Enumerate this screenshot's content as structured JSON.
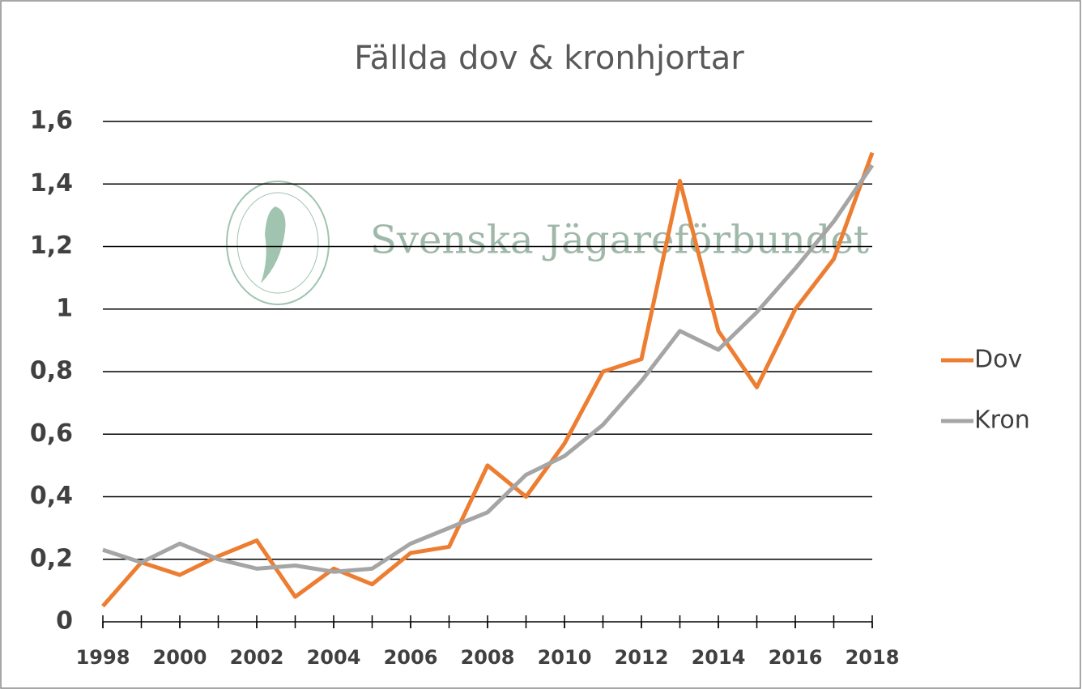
{
  "chart_data": {
    "type": "line",
    "title": "Fällda dov & kronhjortar",
    "watermark": "Svenska Jägareförbundet",
    "x": [
      1998,
      1999,
      2000,
      2001,
      2002,
      2003,
      2004,
      2005,
      2006,
      2007,
      2008,
      2009,
      2010,
      2011,
      2012,
      2013,
      2014,
      2015,
      2016,
      2017,
      2018
    ],
    "xlim": [
      1998,
      2018
    ],
    "xticks": [
      1998,
      2000,
      2002,
      2004,
      2006,
      2008,
      2010,
      2012,
      2014,
      2016,
      2018
    ],
    "ylim": [
      0,
      1.6
    ],
    "yticks": [
      0,
      {
        "value": 0.2,
        "label": "0,2"
      },
      {
        "value": 0.4,
        "label": "0,4"
      },
      {
        "value": 0.6,
        "label": "0,6"
      },
      {
        "value": 0.8,
        "label": "0,8"
      },
      1,
      {
        "value": 1.2,
        "label": "1,2"
      },
      {
        "value": 1.4,
        "label": "1,4"
      },
      {
        "value": 1.6,
        "label": "1,6"
      }
    ],
    "grid": true,
    "legend": "right",
    "series": [
      {
        "name": "Dov",
        "color": "#ed7d31",
        "values": [
          0.05,
          0.19,
          0.15,
          0.21,
          0.26,
          0.08,
          0.17,
          0.12,
          0.22,
          0.24,
          0.5,
          0.4,
          0.57,
          0.8,
          0.84,
          1.41,
          0.93,
          0.75,
          1.0,
          1.16,
          1.5
        ]
      },
      {
        "name": "Kron",
        "color": "#a5a5a5",
        "values": [
          0.23,
          0.19,
          0.25,
          0.2,
          0.17,
          0.18,
          0.16,
          0.17,
          0.25,
          0.3,
          0.35,
          0.47,
          0.53,
          0.63,
          0.77,
          0.93,
          0.87,
          0.99,
          1.13,
          1.28,
          1.46
        ]
      }
    ]
  }
}
